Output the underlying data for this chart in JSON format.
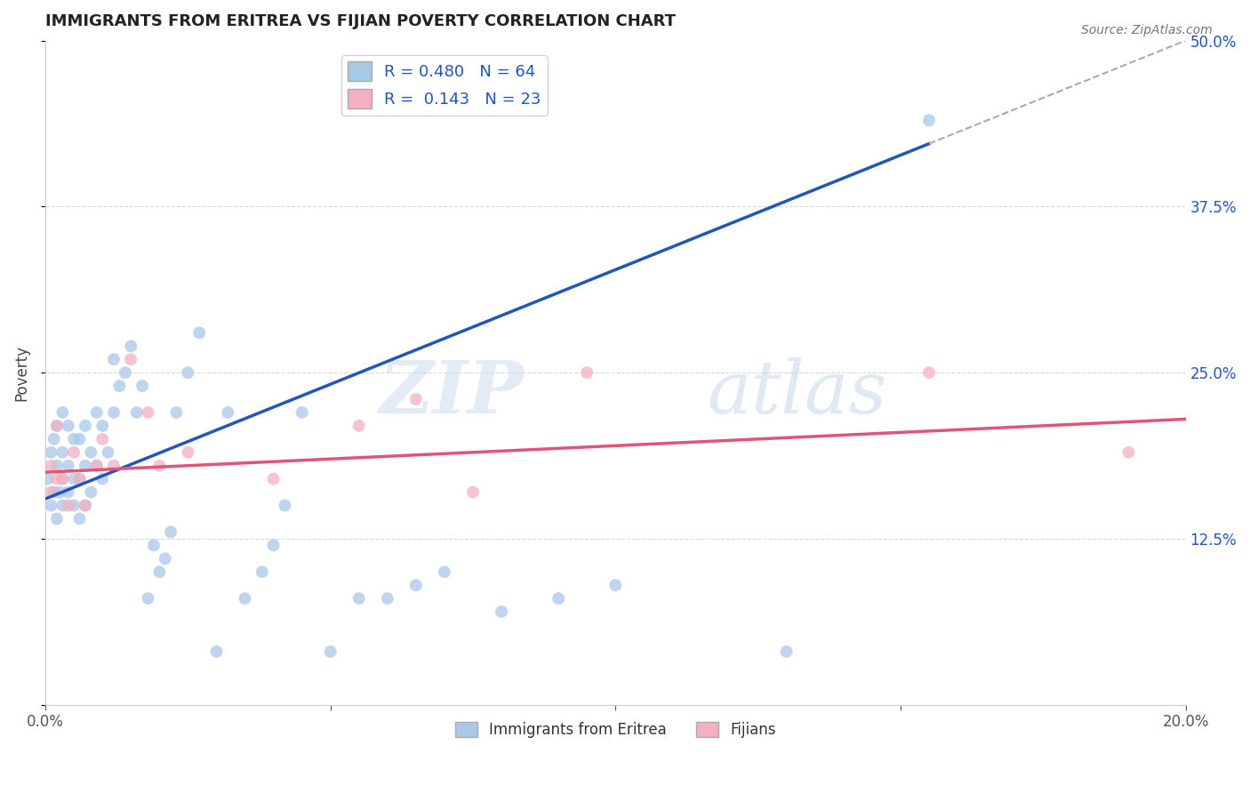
{
  "title": "IMMIGRANTS FROM ERITREA VS FIJIAN POVERTY CORRELATION CHART",
  "source": "Source: ZipAtlas.com",
  "ylabel": "Poverty",
  "xlim": [
    0.0,
    0.2
  ],
  "ylim": [
    0.0,
    0.5
  ],
  "xticks": [
    0.0,
    0.05,
    0.1,
    0.15,
    0.2
  ],
  "xtick_labels": [
    "0.0%",
    "",
    "",
    "",
    "20.0%"
  ],
  "yticks": [
    0.0,
    0.125,
    0.25,
    0.375,
    0.5
  ],
  "ytick_labels_right": [
    "",
    "12.5%",
    "25.0%",
    "37.5%",
    "50.0%"
  ],
  "blue_R": 0.48,
  "blue_N": 64,
  "pink_R": 0.143,
  "pink_N": 23,
  "blue_color": "#a8c8e8",
  "pink_color": "#f4b0c0",
  "blue_line_color": "#2255bb",
  "pink_line_color": "#e05575",
  "dashed_line_color": "#aaaaaa",
  "grid_color": "#d8d8d8",
  "blue_trend_x0": 0.0,
  "blue_trend_y0": 0.155,
  "blue_trend_x1": 0.2,
  "blue_trend_y1": 0.5,
  "pink_trend_x0": 0.0,
  "pink_trend_y0": 0.175,
  "pink_trend_x1": 0.2,
  "pink_trend_y1": 0.215,
  "blue_x": [
    0.0005,
    0.001,
    0.001,
    0.0015,
    0.0015,
    0.002,
    0.002,
    0.002,
    0.0025,
    0.003,
    0.003,
    0.003,
    0.003,
    0.004,
    0.004,
    0.004,
    0.005,
    0.005,
    0.005,
    0.006,
    0.006,
    0.006,
    0.007,
    0.007,
    0.007,
    0.008,
    0.008,
    0.009,
    0.009,
    0.01,
    0.01,
    0.011,
    0.012,
    0.012,
    0.013,
    0.014,
    0.015,
    0.016,
    0.017,
    0.018,
    0.019,
    0.02,
    0.021,
    0.022,
    0.023,
    0.025,
    0.027,
    0.03,
    0.032,
    0.035,
    0.038,
    0.04,
    0.042,
    0.045,
    0.05,
    0.055,
    0.06,
    0.065,
    0.07,
    0.08,
    0.09,
    0.1,
    0.13,
    0.155
  ],
  "blue_y": [
    0.17,
    0.15,
    0.19,
    0.16,
    0.2,
    0.14,
    0.18,
    0.21,
    0.16,
    0.15,
    0.17,
    0.19,
    0.22,
    0.16,
    0.18,
    0.21,
    0.15,
    0.17,
    0.2,
    0.14,
    0.17,
    0.2,
    0.15,
    0.18,
    0.21,
    0.16,
    0.19,
    0.18,
    0.22,
    0.17,
    0.21,
    0.19,
    0.22,
    0.26,
    0.24,
    0.25,
    0.27,
    0.22,
    0.24,
    0.08,
    0.12,
    0.1,
    0.11,
    0.13,
    0.22,
    0.25,
    0.28,
    0.04,
    0.22,
    0.08,
    0.1,
    0.12,
    0.15,
    0.22,
    0.04,
    0.08,
    0.08,
    0.09,
    0.1,
    0.07,
    0.08,
    0.09,
    0.04,
    0.44
  ],
  "pink_x": [
    0.001,
    0.001,
    0.002,
    0.002,
    0.003,
    0.004,
    0.005,
    0.006,
    0.007,
    0.009,
    0.01,
    0.012,
    0.015,
    0.018,
    0.02,
    0.025,
    0.04,
    0.055,
    0.065,
    0.075,
    0.095,
    0.155,
    0.19
  ],
  "pink_y": [
    0.18,
    0.16,
    0.17,
    0.21,
    0.17,
    0.15,
    0.19,
    0.17,
    0.15,
    0.18,
    0.2,
    0.18,
    0.26,
    0.22,
    0.18,
    0.19,
    0.17,
    0.21,
    0.23,
    0.16,
    0.25,
    0.25,
    0.19
  ]
}
